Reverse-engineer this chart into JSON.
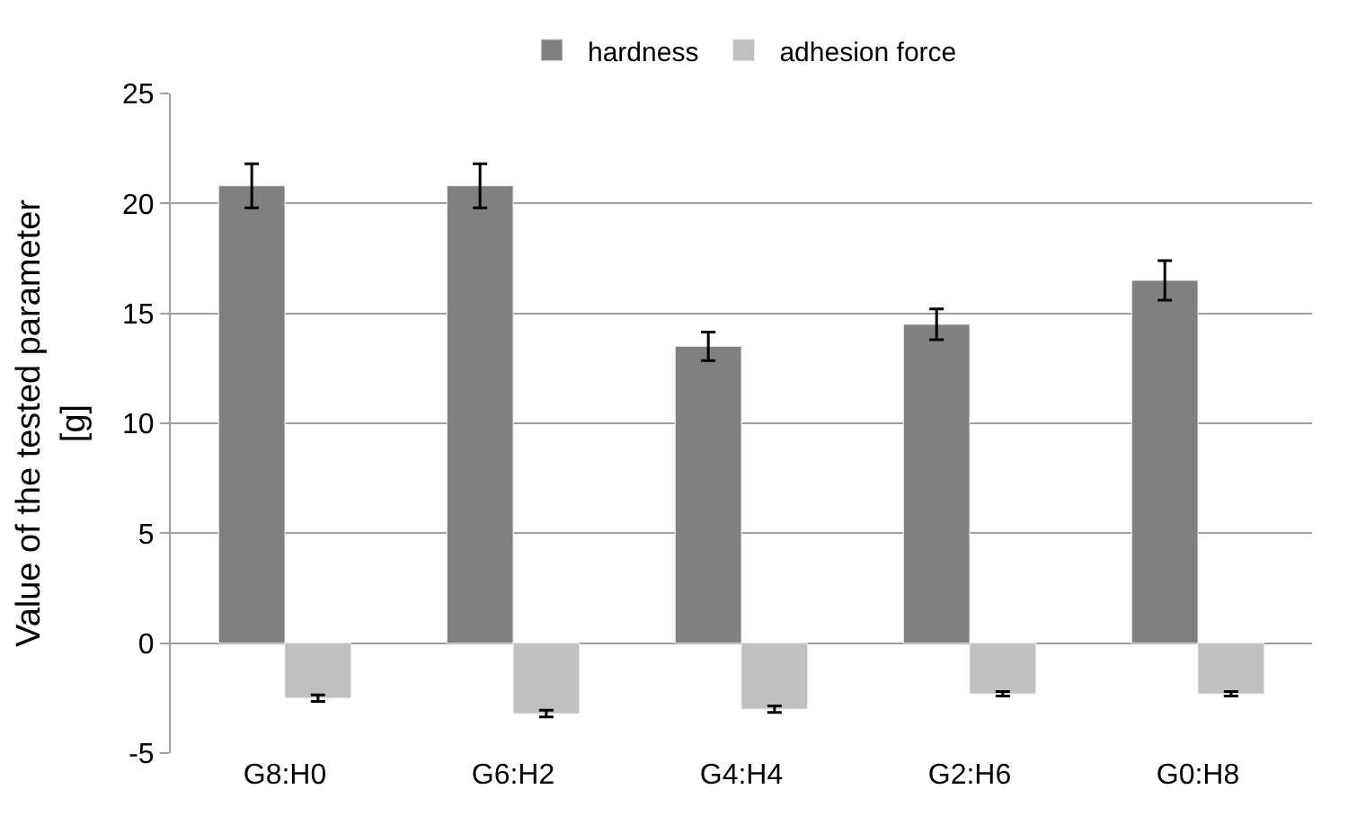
{
  "chart_data": {
    "type": "bar",
    "ylabel": "Value of the tested parameter [g]",
    "categories": [
      "G8:H0",
      "G6:H2",
      "G4:H4",
      "G2:H6",
      "G0:H8"
    ],
    "series": [
      {
        "name": "hardness",
        "color": "#808080",
        "values": [
          20.8,
          20.8,
          13.5,
          14.5,
          16.5
        ],
        "errors": [
          1.0,
          1.0,
          0.65,
          0.7,
          0.9
        ]
      },
      {
        "name": "adhesion force",
        "color": "#c0c0c0",
        "values": [
          -2.5,
          -3.2,
          -3.0,
          -2.3,
          -2.3
        ],
        "errors": [
          0.15,
          0.15,
          0.15,
          0.1,
          0.1
        ]
      }
    ],
    "ylim": [
      -5,
      25
    ],
    "yticks": [
      -5,
      0,
      5,
      10,
      15,
      20,
      25
    ],
    "grid": "y",
    "legend": "top"
  }
}
